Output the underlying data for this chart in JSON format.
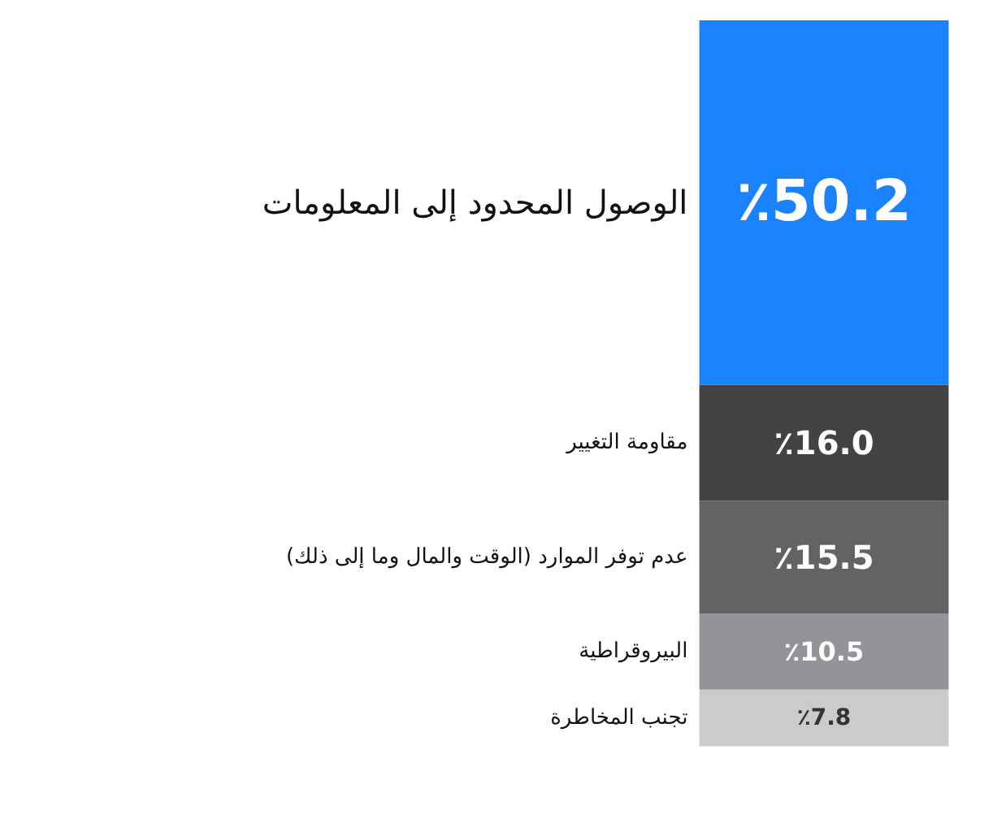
{
  "chart_data": {
    "type": "bar",
    "stacked": true,
    "categories": [
      null
    ],
    "data_labels": true,
    "series": [
      {
        "name": "تجنب المخاطرة",
        "color": "#cbcbcd",
        "values": [
          7.8
        ],
        "value_labels": [
          "٪7.8"
        ]
      },
      {
        "name": "البيروقراطية",
        "color": "#939497",
        "values": [
          10.5
        ],
        "value_labels": [
          "٪10.5"
        ]
      },
      {
        "name": "عدم توفر الموارد (الوقت والمال وما إلى ذلك)",
        "color": "#626365",
        "values": [
          15.5
        ],
        "value_labels": [
          "٪15.5"
        ]
      },
      {
        "name": "مقاومة التغيير",
        "color": "#434345",
        "values": [
          16.0
        ],
        "value_labels": [
          "٪16.0"
        ]
      },
      {
        "name": "الوصول المحدود إلى المعلومات",
        "color": "#1a82fb",
        "values": [
          50.2
        ],
        "value_labels": [
          "٪50.2"
        ]
      }
    ]
  }
}
